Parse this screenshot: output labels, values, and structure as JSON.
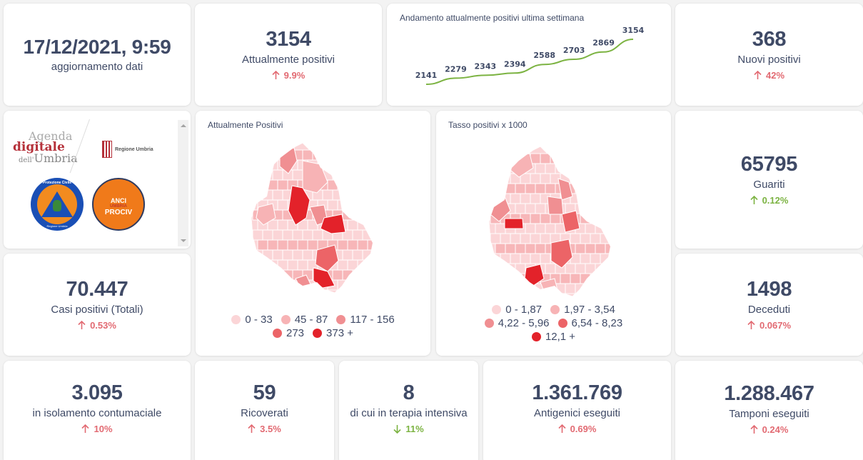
{
  "update": {
    "datetime": "17/12/2021, 9:59",
    "label": "aggiornamento dati"
  },
  "attualmente_positivi": {
    "value": "3154",
    "label": "Attualmente positivi",
    "delta": "9.9%",
    "direction": "up"
  },
  "trend": {
    "title": "Andamento attualmente positivi ultima settimana",
    "values": [
      2141,
      2279,
      2343,
      2394,
      2588,
      2703,
      2869,
      3154
    ],
    "line_color": "#7cb342"
  },
  "nuovi_positivi": {
    "value": "368",
    "label": "Nuovi positivi",
    "delta": "42%",
    "direction": "up"
  },
  "logos": {
    "agenda_line1": "Agenda",
    "agenda_line2": "digitale",
    "agenda_line3_prefix": "dell'",
    "agenda_line3": "Umbria",
    "regione": "Regione Umbria",
    "protezione_top": "Protezione Civile",
    "protezione_bottom": "Regione Umbria",
    "anci_line1": "ANCI",
    "anci_line2": "UMBRIA",
    "anci_line3": "PROCIV"
  },
  "map_positivi": {
    "title": "Attualmente Positivi",
    "legend": [
      {
        "label": "0 - 33",
        "color": "#fbd5d7"
      },
      {
        "label": "45 - 87",
        "color": "#f7b3b5"
      },
      {
        "label": "117 - 156",
        "color": "#f08f92"
      },
      {
        "label": "273",
        "color": "#ec6467"
      },
      {
        "label": "373 +",
        "color": "#e3222a"
      }
    ]
  },
  "map_tasso": {
    "title": "Tasso positivi x 1000",
    "legend": [
      {
        "label": "0 - 1,87",
        "color": "#fbd5d7"
      },
      {
        "label": "1,97 - 3,54",
        "color": "#f7b3b5"
      },
      {
        "label": "4,22 - 5,96",
        "color": "#f08f92"
      },
      {
        "label": "6,54 - 8,23",
        "color": "#ec6467"
      },
      {
        "label": "12,1 +",
        "color": "#e3222a"
      }
    ]
  },
  "guariti": {
    "value": "65795",
    "label": "Guariti",
    "delta": "0.12%",
    "direction": "up"
  },
  "casi_totali": {
    "value": "70.447",
    "label": "Casi positivi (Totali)",
    "delta": "0.53%",
    "direction": "up"
  },
  "deceduti": {
    "value": "1498",
    "label": "Deceduti",
    "delta": "0.067%",
    "direction": "up"
  },
  "isolamento": {
    "value": "3.095",
    "label": "in isolamento contumaciale",
    "delta": "10%",
    "direction": "up"
  },
  "ricoverati": {
    "value": "59",
    "label": "Ricoverati",
    "delta": "3.5%",
    "direction": "up"
  },
  "terapia": {
    "value": "8",
    "label": "di cui in terapia intensiva",
    "delta": "11%",
    "direction": "down"
  },
  "antigenici": {
    "value": "1.361.769",
    "label": "Antigenici eseguiti",
    "delta": "0.69%",
    "direction": "up"
  },
  "tamponi": {
    "value": "1.288.467",
    "label": "Tamponi eseguiti",
    "delta": "0.24%",
    "direction": "up"
  }
}
